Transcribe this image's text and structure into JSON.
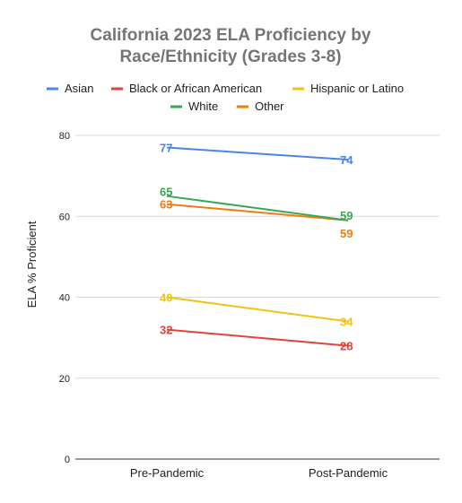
{
  "chart_data": {
    "type": "line",
    "title_lines": [
      "California 2023 ELA Proficiency by",
      "Race/Ethnicity (Grades 3-8)"
    ],
    "ylabel": "ELA % Proficient",
    "xlabel": "",
    "categories": [
      "Pre-Pandemic",
      "Post-Pandemic"
    ],
    "ylim": [
      0,
      80
    ],
    "yticks": [
      0,
      20,
      40,
      60,
      80
    ],
    "grid": true,
    "legend_position": "top",
    "series": [
      {
        "name": "Asian",
        "color": "#4a86e8",
        "values": [
          77,
          74
        ],
        "labels": [
          "77",
          "74"
        ]
      },
      {
        "name": "Black or African American",
        "color": "#e0433b",
        "values": [
          32,
          28
        ],
        "labels": [
          "32",
          "28"
        ]
      },
      {
        "name": "Hispanic or Latino",
        "color": "#f4c20d",
        "values": [
          40,
          34
        ],
        "labels": [
          "40",
          "34"
        ]
      },
      {
        "name": "White",
        "color": "#3aa655",
        "values": [
          65,
          59
        ],
        "labels": [
          "65",
          "59"
        ]
      },
      {
        "name": "Other",
        "color": "#f07c10",
        "values": [
          63,
          59
        ],
        "labels": [
          "63",
          "59"
        ]
      }
    ]
  }
}
